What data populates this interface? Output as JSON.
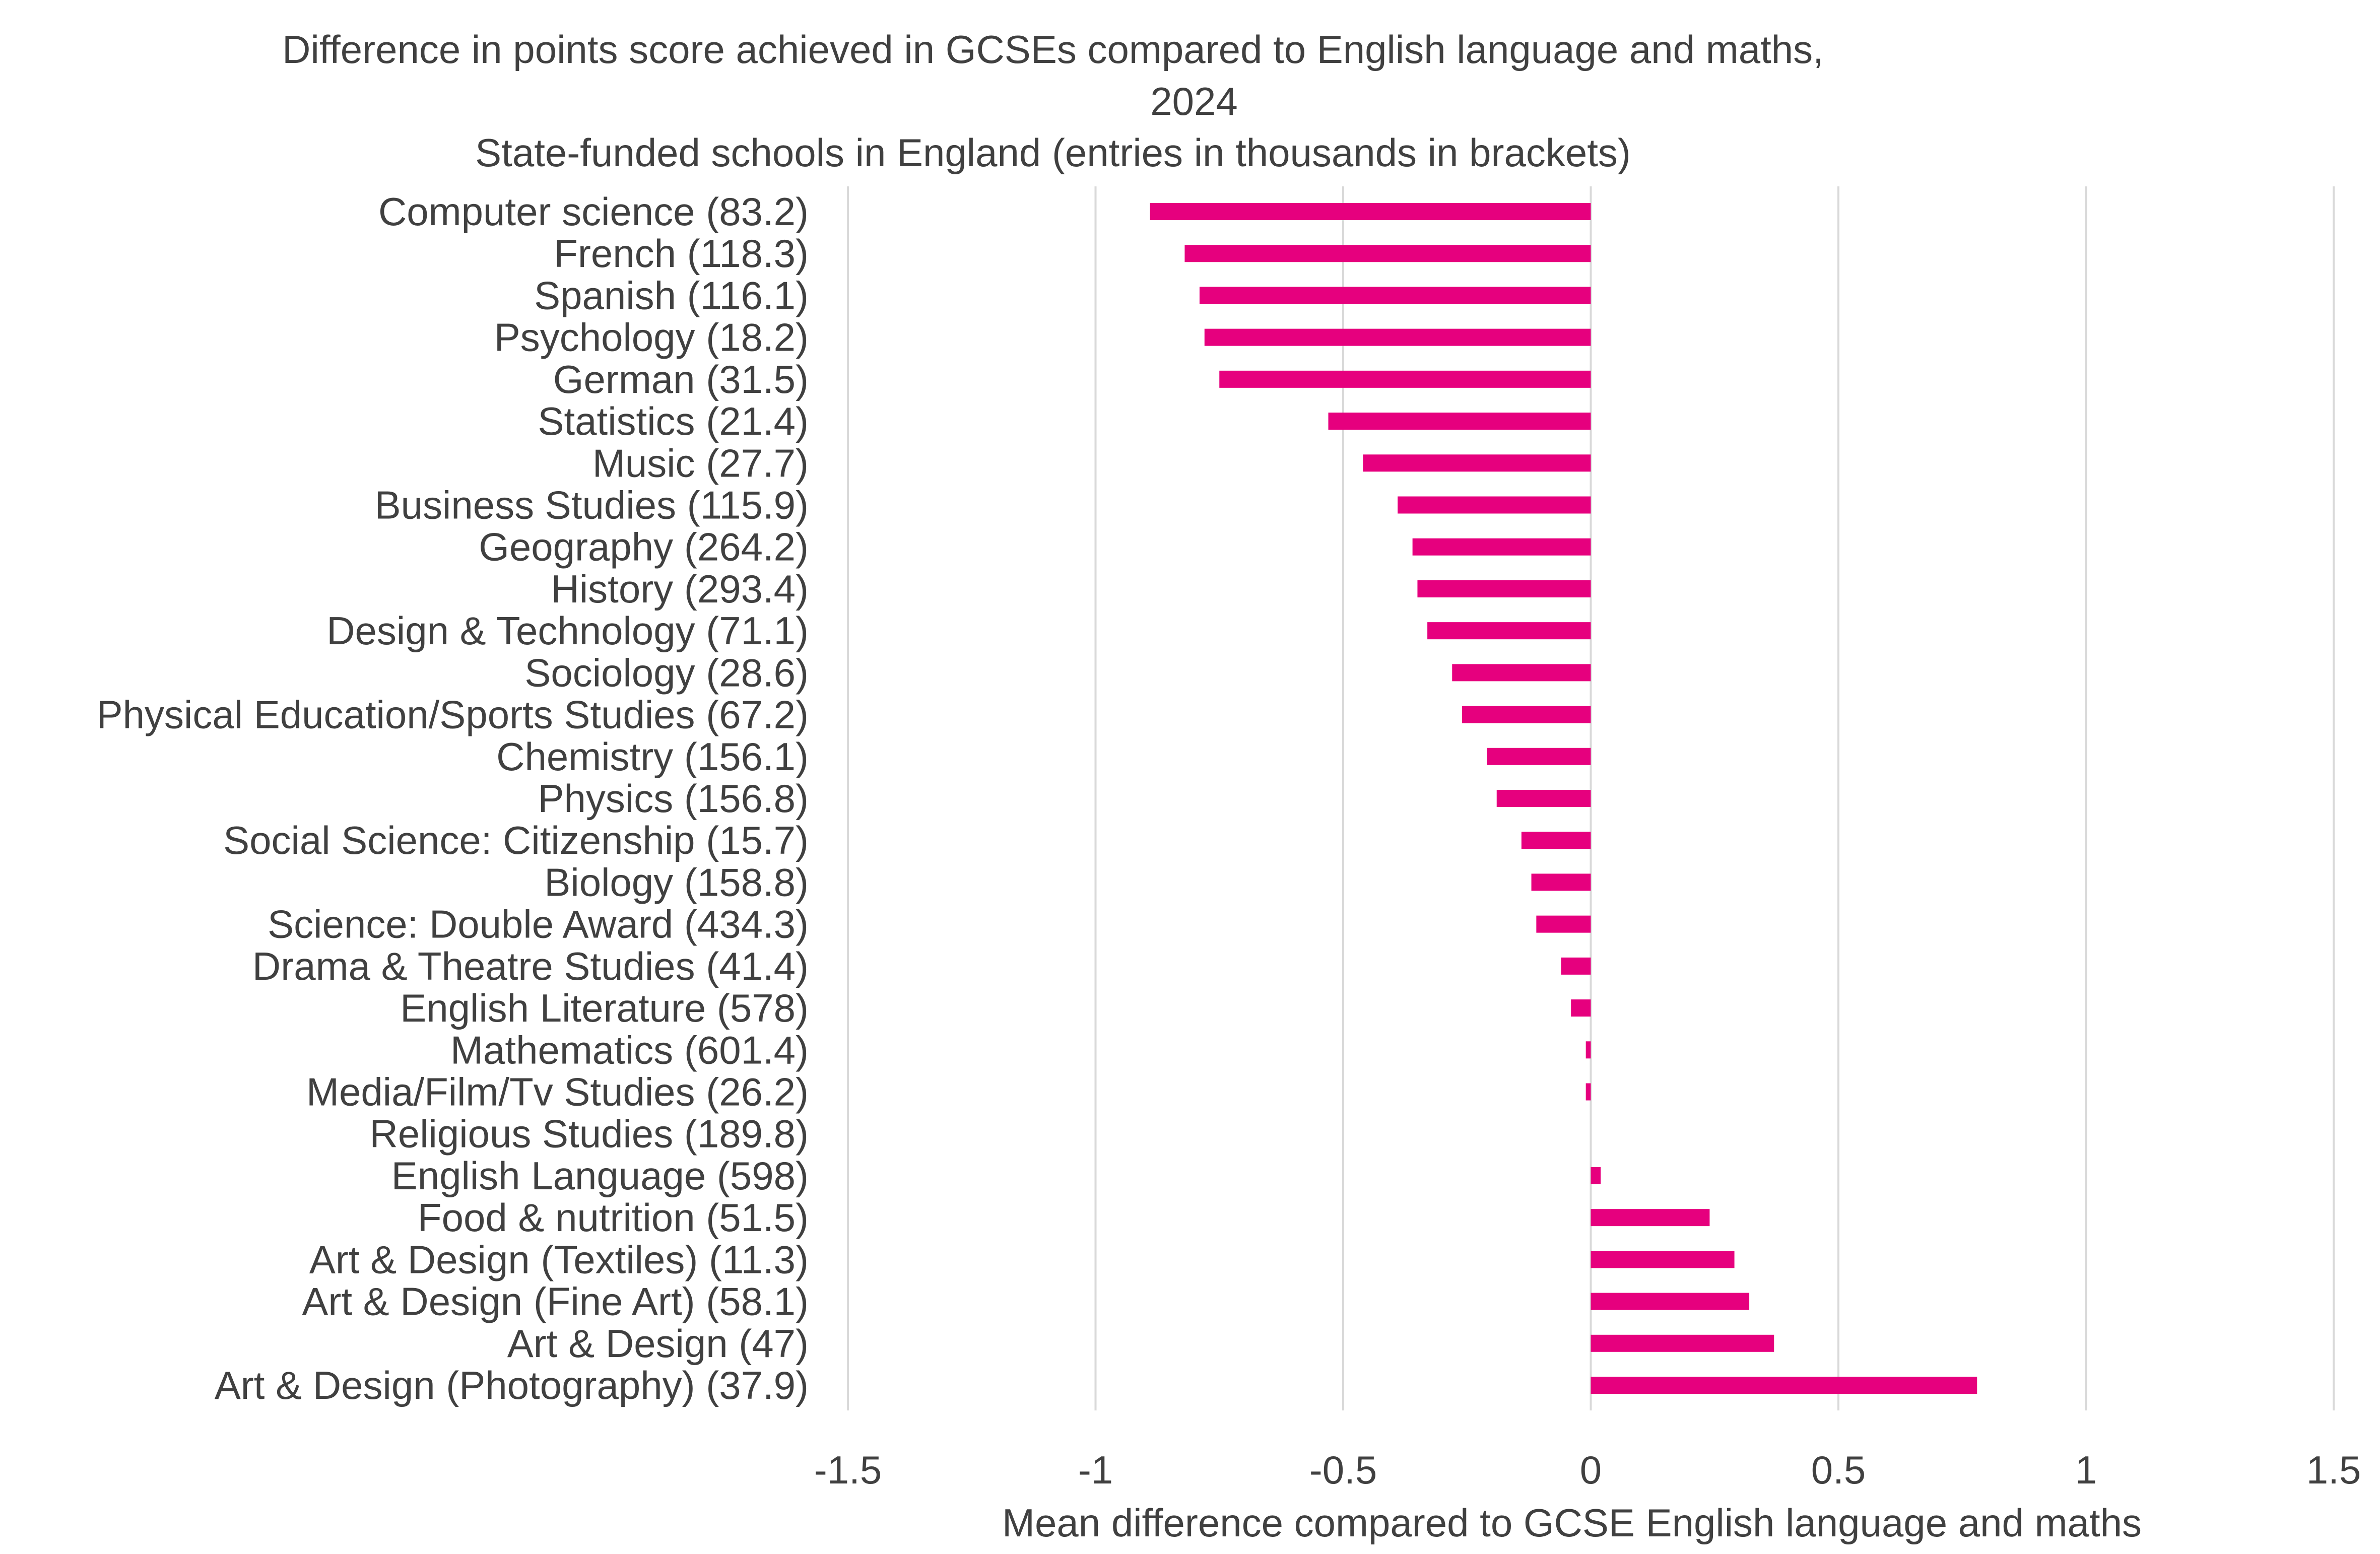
{
  "chart_data": {
    "type": "bar",
    "orientation": "horizontal",
    "title_lines": [
      "Difference in points score achieved in GCSEs compared to English language and maths,",
      "2024",
      "State-funded schools in England (entries in thousands in brackets)"
    ],
    "xlabel": "Mean difference compared to GCSE English language and maths",
    "ylabel": "",
    "xlim": [
      -1.5,
      1.5
    ],
    "xticks": [
      -1.5,
      -1,
      -0.5,
      0,
      0.5,
      1,
      1.5
    ],
    "xtick_labels": [
      "-1.5",
      "-1",
      "-0.5",
      "0",
      "0.5",
      "1",
      "1.5"
    ],
    "grid": "vertical",
    "bar_color": "#E6007E",
    "categories": [
      "Computer science (83.2)",
      "French (118.3)",
      "Spanish (116.1)",
      "Psychology (18.2)",
      "German (31.5)",
      "Statistics (21.4)",
      "Music (27.7)",
      "Business Studies (115.9)",
      "Geography (264.2)",
      "History (293.4)",
      "Design & Technology (71.1)",
      "Sociology (28.6)",
      "Physical Education/Sports Studies (67.2)",
      "Chemistry (156.1)",
      "Physics (156.8)",
      "Social Science: Citizenship (15.7)",
      "Biology (158.8)",
      "Science: Double Award (434.3)",
      "Drama & Theatre Studies (41.4)",
      "English Literature (578)",
      "Mathematics (601.4)",
      "Media/Film/Tv Studies (26.2)",
      "Religious Studies (189.8)",
      "English Language (598)",
      "Food & nutrition (51.5)",
      "Art & Design (Textiles) (11.3)",
      "Art & Design (Fine Art) (58.1)",
      "Art & Design (47)",
      "Art & Design (Photography) (37.9)"
    ],
    "values": [
      -0.89,
      -0.82,
      -0.79,
      -0.78,
      -0.75,
      -0.53,
      -0.46,
      -0.39,
      -0.36,
      -0.35,
      -0.33,
      -0.28,
      -0.26,
      -0.21,
      -0.19,
      -0.14,
      -0.12,
      -0.11,
      -0.06,
      -0.04,
      -0.01,
      -0.01,
      0.0,
      0.02,
      0.24,
      0.29,
      0.32,
      0.37,
      0.78
    ]
  }
}
